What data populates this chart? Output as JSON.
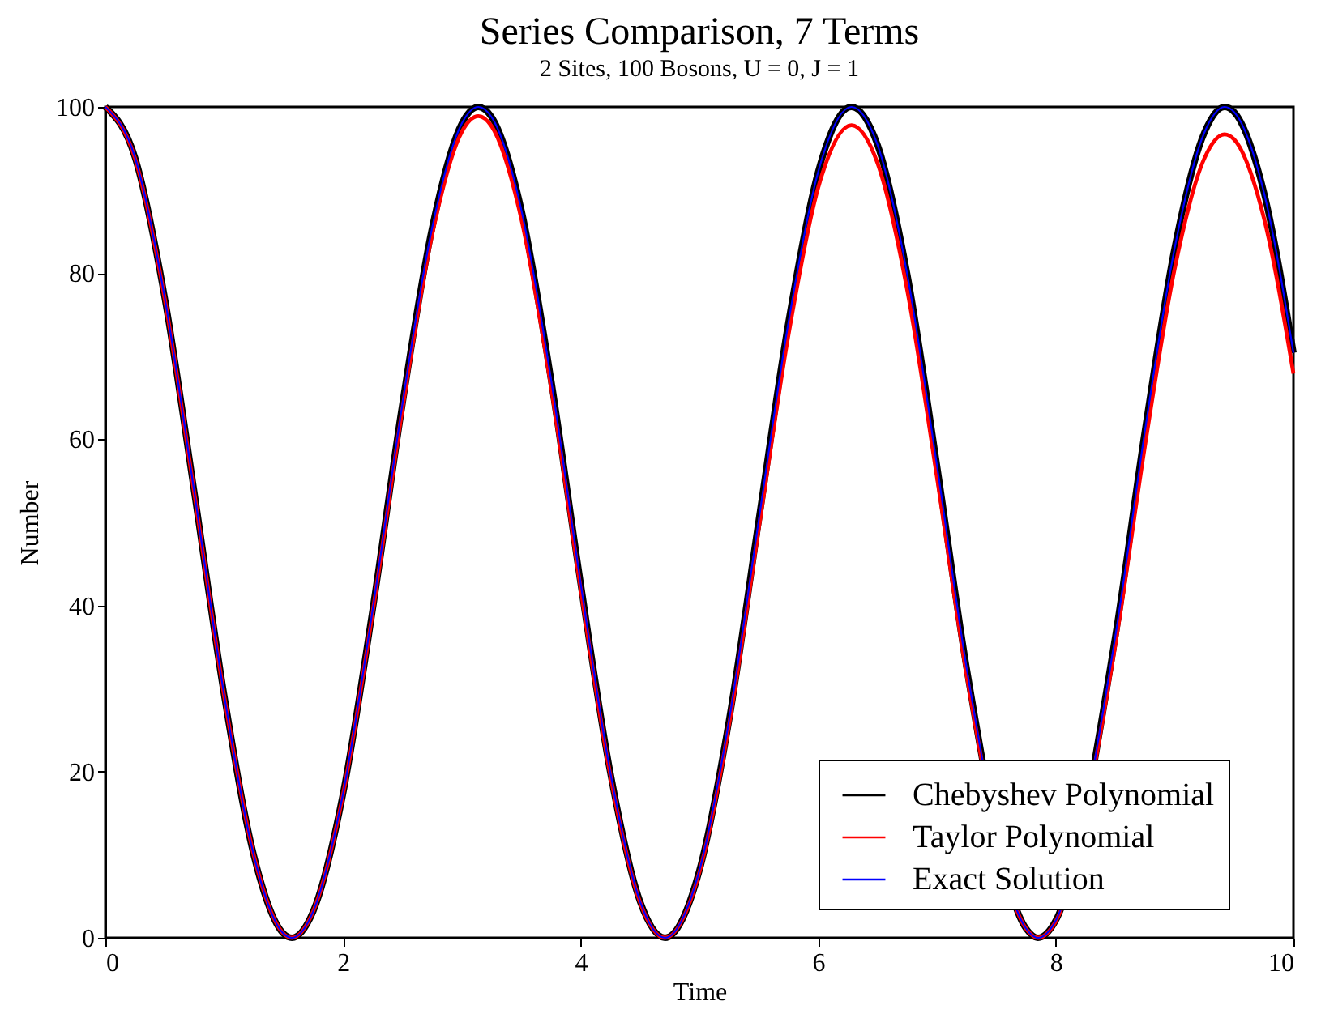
{
  "chart_data": {
    "type": "line",
    "title": "Series Comparison, 7 Terms",
    "subtitle": "2 Sites, 100 Bosons, U = 0, J = 1",
    "xlabel": "Time",
    "ylabel": "Number",
    "x": [
      0,
      0.25,
      0.5,
      0.75,
      1,
      1.25,
      1.5,
      1.57,
      1.75,
      2,
      2.25,
      2.5,
      2.75,
      3,
      3.14,
      3.25,
      3.5,
      3.75,
      4,
      4.25,
      4.5,
      4.71,
      5,
      5.25,
      5.5,
      5.75,
      6,
      6.28,
      6.5,
      6.75,
      7,
      7.25,
      7.5,
      7.75,
      7.85,
      8,
      8.25,
      8.5,
      8.75,
      9,
      9.25,
      9.42,
      9.5,
      9.75,
      10
    ],
    "series": [
      {
        "name": "Chebyshev Polynomial",
        "color": "#000000",
        "values": [
          100,
          93.9,
          77.0,
          53.5,
          29.2,
          9.9,
          0.5,
          0,
          3.2,
          17.3,
          39.5,
          64.2,
          85.4,
          98.0,
          100,
          98.8,
          87.7,
          67.3,
          42.7,
          19.9,
          4.4,
          0,
          8.1,
          26.2,
          50.3,
          74.1,
          92.2,
          100,
          95.4,
          79.8,
          56.8,
          32.4,
          null,
          1.1,
          0,
          2.1,
          null,
          36.2,
          61.0,
          83.0,
          96.9,
          100,
          99.4,
          89.8,
          70.4
        ]
      },
      {
        "name": "Taylor Polynomial",
        "color": "#ff0000",
        "values": [
          100,
          93.8,
          76.9,
          53.4,
          29.1,
          9.9,
          0.5,
          0,
          3.2,
          17.2,
          39.2,
          63.6,
          84.6,
          97.0,
          98.9,
          97.7,
          86.6,
          66.4,
          42.1,
          19.6,
          4.3,
          0,
          7.9,
          25.7,
          49.3,
          72.6,
          90.3,
          97.8,
          93.2,
          77.9,
          55.4,
          31.6,
          null,
          1.1,
          0,
          2.0,
          null,
          35.2,
          59.2,
          80.5,
          93.8,
          96.7,
          96.1,
          86.7,
          67.9
        ]
      },
      {
        "name": "Exact Solution",
        "color": "#0000ff",
        "values": [
          100,
          93.9,
          77.0,
          53.5,
          29.2,
          9.9,
          0.5,
          0,
          3.2,
          17.3,
          39.5,
          64.2,
          85.4,
          98.0,
          100,
          98.8,
          87.7,
          67.3,
          42.7,
          19.9,
          4.4,
          0,
          8.1,
          26.2,
          50.3,
          74.1,
          92.2,
          100,
          95.4,
          79.8,
          56.8,
          32.4,
          null,
          1.1,
          0,
          2.1,
          null,
          36.2,
          61.0,
          83.0,
          96.9,
          100,
          99.4,
          89.8,
          70.4
        ]
      }
    ],
    "xlim": [
      0,
      10
    ],
    "xticks": [
      0,
      2,
      4,
      6,
      8,
      10
    ],
    "ylim": [
      0,
      100
    ],
    "yticks": [
      0,
      20,
      40,
      60,
      80,
      100
    ],
    "grid": false,
    "legend": "bottom right"
  }
}
